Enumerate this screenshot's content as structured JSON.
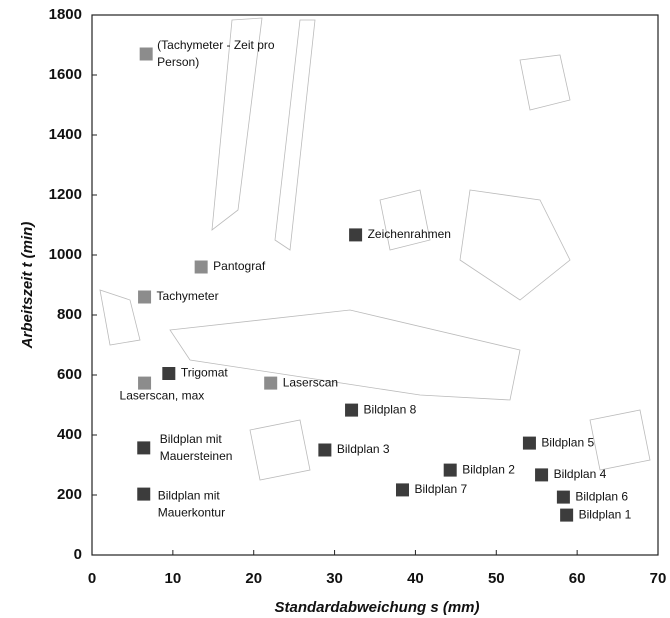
{
  "chart_data": {
    "type": "scatter",
    "xlabel": "Standardabweichung s (mm)",
    "ylabel": "Arbeitszeit t (min)",
    "xlim": [
      0,
      70
    ],
    "xticks": [
      0,
      10,
      20,
      30,
      40,
      50,
      60,
      70
    ],
    "ylim": [
      0,
      1800
    ],
    "yticks": [
      0,
      200,
      400,
      600,
      800,
      1000,
      1200,
      1400,
      1600,
      1800
    ],
    "points": [
      {
        "x": 6.7,
        "y": 1670,
        "color": "#8c8c8c",
        "label": [
          "(Tachymeter - Zeit pro",
          "Person)"
        ]
      },
      {
        "x": 13.5,
        "y": 960,
        "color": "#8c8c8c",
        "label": [
          "Pantograf"
        ]
      },
      {
        "x": 6.5,
        "y": 860,
        "color": "#8c8c8c",
        "label": [
          "Tachymeter"
        ]
      },
      {
        "x": 9.5,
        "y": 605,
        "color": "#3c3c3c",
        "label": [
          "Trigomat"
        ]
      },
      {
        "x": 6.5,
        "y": 573,
        "color": "#8c8c8c",
        "label": [
          "Laserscan, max"
        ]
      },
      {
        "x": 22.1,
        "y": 573,
        "color": "#8c8c8c",
        "label": [
          "Laserscan"
        ]
      },
      {
        "x": 32.6,
        "y": 1067,
        "color": "#3c3c3c",
        "label": [
          "Zeichenrahmen"
        ]
      },
      {
        "x": 32.1,
        "y": 483,
        "color": "#3c3c3c",
        "label": [
          "Bildplan 8"
        ]
      },
      {
        "x": 6.4,
        "y": 357,
        "color": "#3c3c3c",
        "label": [
          "Bildplan mit",
          "Mauersteinen"
        ]
      },
      {
        "x": 28.8,
        "y": 350,
        "color": "#3c3c3c",
        "label": [
          "Bildplan 3"
        ]
      },
      {
        "x": 54.1,
        "y": 373,
        "color": "#3c3c3c",
        "label": [
          "Bildplan 5"
        ]
      },
      {
        "x": 44.3,
        "y": 283,
        "color": "#3c3c3c",
        "label": [
          "Bildplan 2"
        ]
      },
      {
        "x": 55.6,
        "y": 267,
        "color": "#3c3c3c",
        "label": [
          "Bildplan 4"
        ]
      },
      {
        "x": 6.4,
        "y": 203,
        "color": "#3c3c3c",
        "label": [
          "Bildplan mit",
          "Mauerkontur"
        ]
      },
      {
        "x": 38.4,
        "y": 217,
        "color": "#3c3c3c",
        "label": [
          "Bildplan 7"
        ]
      },
      {
        "x": 58.3,
        "y": 193,
        "color": "#3c3c3c",
        "label": [
          "Bildplan 6"
        ]
      },
      {
        "x": 58.7,
        "y": 133,
        "color": "#3c3c3c",
        "label": [
          "Bildplan 1"
        ]
      }
    ]
  }
}
